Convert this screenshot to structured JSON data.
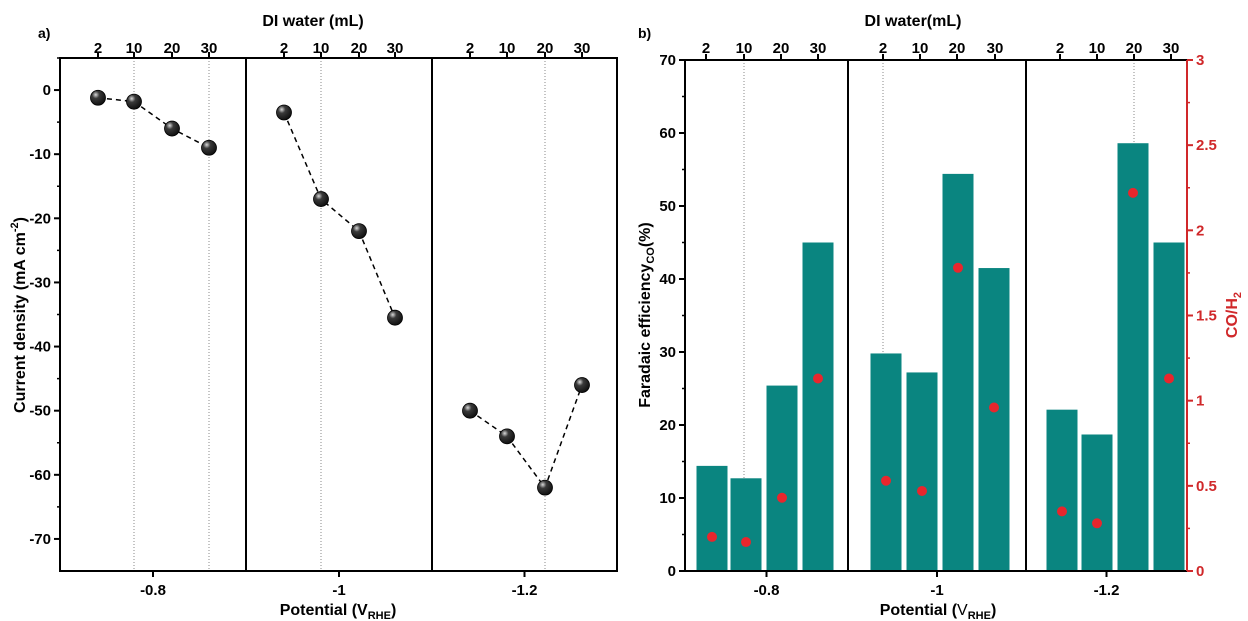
{
  "chart_data": [
    {
      "type": "scatter",
      "panel_label": "a)",
      "top_axis_label": "DI water (mL)",
      "top_ticks": [
        "2",
        "10",
        "20",
        "30",
        "2",
        "10",
        "20",
        "30",
        "2",
        "10",
        "20",
        "30"
      ],
      "bottom_axis_label": {
        "main": "Potential (V",
        "sub": "RHE",
        "end": ")"
      },
      "ylabel": {
        "main": "Current density (mA cm",
        "sup": "-2",
        "end": ")"
      },
      "ylim": [
        -75,
        5
      ],
      "yticks": [
        0,
        -10,
        -20,
        -30,
        -40,
        -50,
        -60,
        -70
      ],
      "groups": [
        "-0.8",
        "-1",
        "-1.2"
      ],
      "series": [
        {
          "group": "-0.8",
          "x": [
            "2",
            "10",
            "20",
            "30"
          ],
          "y": [
            -1.2,
            -1.8,
            -6.0,
            -9.0
          ]
        },
        {
          "group": "-1",
          "x": [
            "2",
            "10",
            "20",
            "30"
          ],
          "y": [
            -3.5,
            -17.0,
            -22.0,
            -35.5
          ]
        },
        {
          "group": "-1.2",
          "x": [
            "2",
            "10",
            "20",
            "30"
          ],
          "y": [
            -50.0,
            -54.0,
            -62.0,
            -46.0
          ]
        }
      ],
      "marker_color": "#111111",
      "line_style": "dashed"
    },
    {
      "type": "bar",
      "panel_label": "b)",
      "top_axis_label": "DI water(mL)",
      "top_ticks": [
        "2",
        "10",
        "20",
        "30",
        "2",
        "10",
        "20",
        "30",
        "2",
        "10",
        "20",
        "30"
      ],
      "bottom_axis_label": {
        "main": "Potential (",
        "sub_label": "V",
        "sub": "RHE",
        "end": ")"
      },
      "ylabel": {
        "main": "Faradaic efficiency",
        "sub": "CO",
        "end": "(%)"
      },
      "ylim": [
        0,
        70
      ],
      "yticks": [
        0,
        10,
        20,
        30,
        40,
        50,
        60,
        70
      ],
      "y2label": {
        "main": "CO/H",
        "sub": "2"
      },
      "y2lim": [
        0,
        3
      ],
      "y2ticks": [
        "0",
        "0.5",
        "1",
        "1.5",
        "2",
        "2.5",
        "3"
      ],
      "groups": [
        "-0.8",
        "-1",
        "-1.2"
      ],
      "series": [
        {
          "group": "-0.8",
          "fe": [
            14.4,
            12.7,
            25.4,
            45.0
          ],
          "ratio": [
            0.2,
            0.17,
            0.43,
            1.13
          ]
        },
        {
          "group": "-1",
          "fe": [
            29.8,
            27.2,
            54.4,
            41.5
          ],
          "ratio": [
            0.53,
            0.47,
            1.78,
            0.96
          ]
        },
        {
          "group": "-1.2",
          "fe": [
            22.1,
            18.7,
            58.6,
            45.0
          ],
          "ratio": [
            0.35,
            0.28,
            2.22,
            1.13
          ]
        }
      ],
      "bar_color": "#0a8580",
      "marker_color": "#e8262d",
      "axis2_color": "#d0282a"
    }
  ]
}
